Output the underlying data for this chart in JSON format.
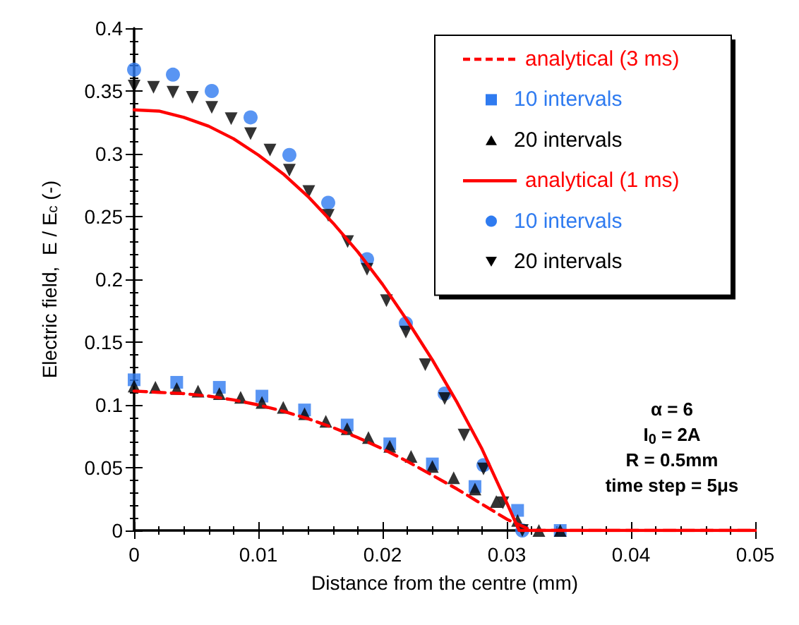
{
  "chart_data": {
    "type": "line",
    "xlabel": "Distance from the centre (mm)",
    "ylabel": "Electric field,  E / E$_{c}$ (-)",
    "xlim": [
      0,
      0.05
    ],
    "xticks": [
      0,
      0.01,
      0.02,
      0.03,
      0.04,
      0.05
    ],
    "ylim": [
      0,
      0.4
    ],
    "yticks": [
      0,
      0.05,
      0.1,
      0.15,
      0.2,
      0.25,
      0.3,
      0.35,
      0.4
    ],
    "grid": false,
    "legend": "top right",
    "annotations": [
      "α = 6",
      "I$_{0}$ = 2A",
      "R = 0.5mm",
      "time step = 5μs"
    ],
    "series": [
      {
        "name": "analytical (3 ms)",
        "color": "#ff0000",
        "line_style": "dashed",
        "marker": "none",
        "x": [
          0,
          0.002,
          0.004,
          0.006,
          0.008,
          0.01,
          0.012,
          0.014,
          0.016,
          0.018,
          0.02,
          0.022,
          0.024,
          0.026,
          0.028,
          0.03,
          0.032,
          0.05
        ],
        "values": [
          0.111,
          0.11,
          0.109,
          0.107,
          0.104,
          0.1,
          0.095,
          0.089,
          0.082,
          0.074,
          0.065,
          0.055,
          0.044,
          0.033,
          0.021,
          0.009,
          0,
          0
        ]
      },
      {
        "name": "10 intervals",
        "type": "scatter",
        "color": "#2f7bf0",
        "marker": "square",
        "x": [
          0,
          0.00343,
          0.00686,
          0.01029,
          0.01372,
          0.01715,
          0.02058,
          0.02401,
          0.02744,
          0.03087,
          0.0343
        ],
        "values": [
          0.12,
          0.118,
          0.114,
          0.107,
          0.096,
          0.084,
          0.069,
          0.053,
          0.035,
          0.016,
          0
        ]
      },
      {
        "name": "20 intervals",
        "type": "scatter",
        "color": "#000000",
        "marker": "triangle",
        "x": [
          0,
          0.001715,
          0.00343,
          0.005145,
          0.00686,
          0.008575,
          0.01029,
          0.012005,
          0.01372,
          0.015435,
          0.01715,
          0.018865,
          0.02058,
          0.022295,
          0.02401,
          0.025725,
          0.02744,
          0.029155,
          0.03087,
          0.032585,
          0.0343
        ],
        "values": [
          0.115,
          0.114,
          0.113,
          0.111,
          0.109,
          0.106,
          0.102,
          0.098,
          0.093,
          0.087,
          0.081,
          0.074,
          0.067,
          0.059,
          0.051,
          0.042,
          0.033,
          0.023,
          0.008,
          0,
          0
        ]
      },
      {
        "name": "analytical (1 ms)",
        "color": "#ff0000",
        "line_style": "solid",
        "marker": "none",
        "x": [
          0,
          0.002,
          0.004,
          0.006,
          0.008,
          0.01,
          0.012,
          0.014,
          0.016,
          0.018,
          0.02,
          0.022,
          0.024,
          0.026,
          0.028,
          0.03,
          0.031,
          0.05
        ],
        "values": [
          0.335,
          0.334,
          0.329,
          0.322,
          0.312,
          0.299,
          0.284,
          0.266,
          0.245,
          0.222,
          0.196,
          0.167,
          0.136,
          0.102,
          0.065,
          0.022,
          0,
          0
        ]
      },
      {
        "name": "10 intervals",
        "type": "scatter",
        "color": "#2f7bf0",
        "marker": "circle",
        "x": [
          0,
          0.003125,
          0.00625,
          0.009375,
          0.0125,
          0.015625,
          0.01875,
          0.021875,
          0.025,
          0.028125,
          0.03125
        ],
        "values": [
          0.367,
          0.363,
          0.35,
          0.329,
          0.299,
          0.261,
          0.216,
          0.165,
          0.109,
          0.052,
          0
        ]
      },
      {
        "name": "20 intervals",
        "type": "scatter",
        "color": "#000000",
        "marker": "triangle-down",
        "x": [
          0,
          0.0015625,
          0.003125,
          0.0046875,
          0.00625,
          0.0078125,
          0.009375,
          0.0109375,
          0.0125,
          0.0140625,
          0.015625,
          0.0171875,
          0.01875,
          0.0203125,
          0.021875,
          0.0234375,
          0.025,
          0.0265625,
          0.028125,
          0.0296875,
          0.03125
        ],
        "values": [
          0.354,
          0.353,
          0.349,
          0.345,
          0.337,
          0.328,
          0.316,
          0.303,
          0.287,
          0.27,
          0.251,
          0.23,
          0.208,
          0.183,
          0.158,
          0.132,
          0.105,
          0.076,
          0.049,
          0.022,
          0
        ]
      }
    ]
  }
}
